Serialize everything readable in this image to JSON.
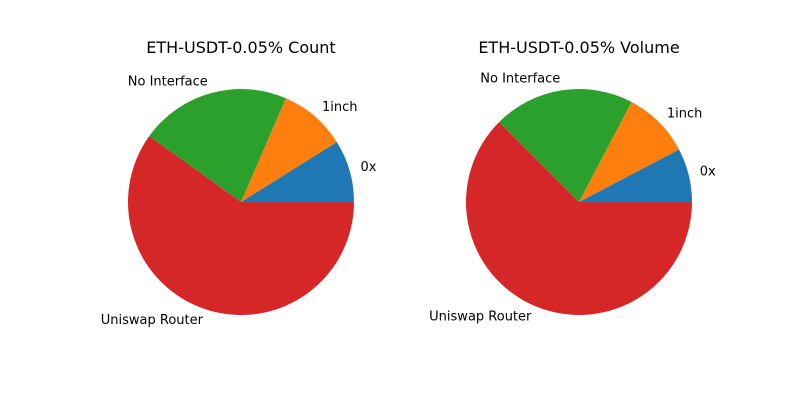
{
  "chart_data": [
    {
      "type": "pie",
      "title": "ETH-USDT-0.05% Count",
      "labels": [
        "0x",
        "1inch",
        "No Interface",
        "Uniswap Router"
      ],
      "values": [
        8.9,
        9.6,
        21.6,
        59.9
      ],
      "colors": [
        "#1f77b4",
        "#ff7f0e",
        "#2ca02c",
        "#d62728"
      ],
      "legend": "none"
    },
    {
      "type": "pie",
      "title": "ETH-USDT-0.05% Volume",
      "labels": [
        "0x",
        "1inch",
        "No Interface",
        "Uniswap Router"
      ],
      "values": [
        7.7,
        9.6,
        20.2,
        62.5
      ],
      "colors": [
        "#1f77b4",
        "#ff7f0e",
        "#2ca02c",
        "#d62728"
      ],
      "legend": "none"
    }
  ]
}
